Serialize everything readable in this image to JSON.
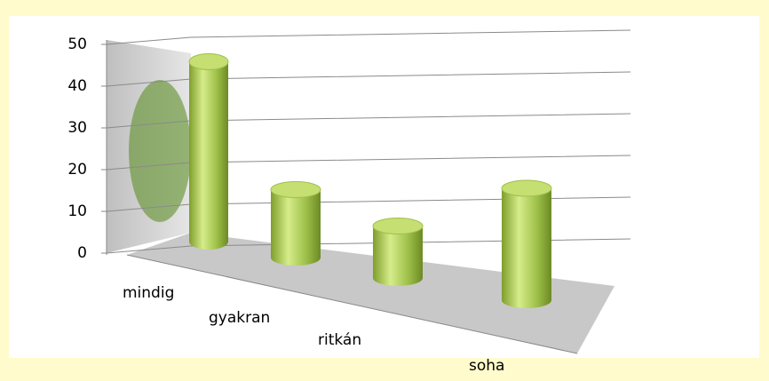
{
  "chart_data": {
    "type": "bar3d",
    "categories": [
      "mindig",
      "gyakran",
      "ritkán",
      "soha"
    ],
    "values": [
      45,
      17,
      13,
      28
    ],
    "color": "#9fc14a",
    "ylim": [
      0,
      50
    ],
    "yticks": [
      0,
      10,
      20,
      30,
      40,
      50
    ],
    "grid": true
  }
}
